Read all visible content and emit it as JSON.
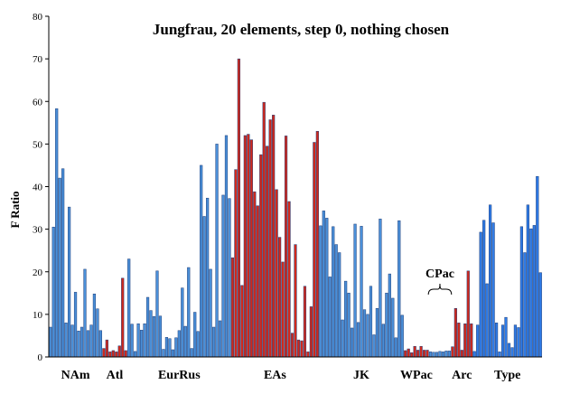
{
  "chart_data": {
    "type": "bar",
    "title": "Jungfrau, 20 elements, step 0, nothing chosen",
    "ylabel": "F Ratio",
    "xlabel": "",
    "ylim": [
      0,
      80
    ],
    "yticks": [
      0,
      10,
      20,
      30,
      40,
      50,
      60,
      70,
      80
    ],
    "grid": false,
    "legend": "none",
    "annotation": "CPac",
    "colors": {
      "blue": "#4a8fd8",
      "red": "#d0281c",
      "brightblue": "#2f7be6"
    },
    "groups": [
      {
        "label": "NAm",
        "color": "blue",
        "values": [
          7,
          30.5,
          58.3,
          42,
          44.2,
          8,
          35.2,
          7.5,
          15.2,
          6.1,
          7,
          20.6,
          6.2,
          7.5,
          14.8,
          11.3,
          6.2
        ]
      },
      {
        "label": "Atl",
        "color": "red",
        "values": [
          2,
          4,
          1.2,
          1.5,
          1.2,
          2.6,
          18.5,
          1.5
        ]
      },
      {
        "label": "EurRus",
        "color": "blue",
        "values": [
          23,
          7.7,
          1.3,
          7.8,
          6.3,
          7.8,
          14,
          10.9,
          9.5,
          20.2,
          9.6,
          1.8,
          4.6,
          4.3,
          1.7,
          4.5,
          6.2,
          16.2,
          7.2,
          21,
          2,
          10.5,
          6,
          45,
          33,
          37.3,
          20.6,
          7,
          50,
          8.5,
          38,
          52,
          37.2
        ]
      },
      {
        "label": "EAs",
        "color": "red",
        "values": [
          23.3,
          44,
          70,
          16.8,
          52,
          52.3,
          51,
          38.8,
          35.5,
          47.5,
          59.8,
          49.5,
          55.7,
          56.8,
          39.3,
          28.1,
          22.3,
          51.9,
          36.5,
          5.6,
          26.4,
          4,
          3.8,
          16.6,
          1.2,
          11.8,
          50.4,
          53
        ]
      },
      {
        "label": "JK",
        "color": "blue",
        "values": [
          30.8,
          34.3,
          32.6,
          18.8,
          30.6,
          26.4,
          24.5,
          8.7,
          17.8,
          15,
          6.8,
          31.2,
          8.1,
          30.7,
          11.1,
          10,
          16.6,
          5.2,
          11.4,
          32.4,
          7.7,
          15,
          19.5,
          13.8,
          4.5,
          32,
          9.8
        ]
      },
      {
        "label": "WPac",
        "color": "red",
        "values": [
          1.5,
          1.9,
          1,
          2.5,
          1.6,
          2.5,
          1.6,
          1.6
        ]
      },
      {
        "label": "CPac",
        "color": "blue",
        "values": [
          1.2,
          1.1,
          1.1,
          1.3,
          1.2,
          1.4,
          1.4
        ]
      },
      {
        "label": "Arc",
        "color": "red",
        "values": [
          2.4,
          11.4,
          8,
          1.6,
          7.8,
          20.2,
          7.8
        ]
      },
      {
        "label": "Type",
        "color": "brightblue",
        "values": [
          1.3,
          7.5,
          29.3,
          32.1,
          17.2,
          35.7,
          31.5,
          8,
          1.2,
          7.5,
          9.3,
          3.2,
          2.2,
          7.5,
          6.9,
          30.6,
          24.5,
          35.7,
          30.1,
          30.9,
          42.4,
          19.8
        ]
      }
    ]
  }
}
